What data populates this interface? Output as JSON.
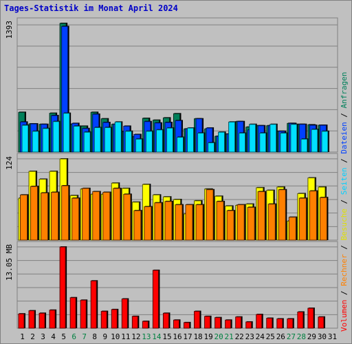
{
  "chart_data": {
    "type": "bar",
    "title": "Tages-Statistik im Monat April 2024",
    "days": [
      "1",
      "2",
      "3",
      "4",
      "5",
      "6",
      "7",
      "8",
      "9",
      "10",
      "11",
      "12",
      "13",
      "14",
      "15",
      "16",
      "17",
      "18",
      "19",
      "20",
      "21",
      "22",
      "23",
      "24",
      "25",
      "26",
      "27",
      "28",
      "29",
      "30",
      "31"
    ],
    "weekend_days": [
      "6",
      "7",
      "13",
      "14",
      "20",
      "21",
      "27",
      "28"
    ],
    "panels": [
      {
        "id": "requests",
        "scale_label": "1393",
        "ymax": 1393,
        "series": [
          {
            "name": "Anfragen",
            "color": "#00805a",
            "values": [
              430,
              305,
              300,
              420,
              1393,
              300,
              280,
              430,
              360,
              300,
              220,
              165,
              365,
              345,
              370,
              415,
              250,
              360,
              250,
              170,
              195,
              330,
              270,
              285,
              285,
              225,
              310,
              300,
              295,
              290,
              0
            ]
          },
          {
            "name": "Dateien",
            "color": "#0040ff",
            "values": [
              325,
              305,
              300,
              395,
              1360,
              310,
              255,
              410,
              320,
              300,
              280,
              190,
              330,
              315,
              320,
              340,
              250,
              360,
              260,
              170,
              195,
              330,
              240,
              285,
              285,
              225,
              310,
              300,
              290,
              290,
              0
            ]
          },
          {
            "name": "Seiten",
            "color": "#00e0ff",
            "values": [
              290,
              225,
              255,
              330,
              420,
              280,
              215,
              265,
              265,
              325,
              225,
              140,
              225,
              240,
              260,
              160,
              260,
              205,
              100,
              215,
              325,
              205,
              300,
              205,
              300,
              205,
              300,
              140,
              245,
              225,
              0
            ]
          }
        ]
      },
      {
        "id": "visits",
        "scale_label": "124",
        "ymax": 124,
        "series": [
          {
            "name": "Besuche",
            "color": "#ffff00",
            "values": [
              64,
              105,
              93,
              105,
              124,
              68,
              78,
              70,
              70,
              87,
              79,
              58,
              85,
              69,
              66,
              62,
              40,
              60,
              78,
              67,
              52,
              53,
              55,
              80,
              76,
              81,
              29,
              71,
              95,
              81,
              0
            ]
          },
          {
            "name": "Rechner",
            "color": "#ff8000",
            "values": [
              69,
              82,
              72,
              73,
              83,
              64,
              79,
              74,
              73,
              79,
              70,
              45,
              51,
              57,
              59,
              54,
              54,
              54,
              77,
              59,
              45,
              54,
              50,
              74,
              55,
              77,
              35,
              64,
              75,
              65,
              0
            ]
          }
        ]
      },
      {
        "id": "volume",
        "scale_label": "13.05 MB",
        "ymax": 13.05,
        "series": [
          {
            "name": "Volumen",
            "color": "#ff0000",
            "values": [
              2.3,
              2.8,
              2.4,
              2.9,
              13.05,
              4.9,
              4.5,
              7.6,
              2.7,
              3.0,
              4.7,
              1.9,
              1.1,
              9.3,
              2.4,
              1.3,
              0.9,
              2.7,
              1.9,
              1.7,
              1.3,
              1.8,
              1.0,
              2.2,
              1.6,
              1.5,
              1.5,
              2.6,
              3.2,
              1.8,
              0
            ]
          }
        ]
      }
    ],
    "legend": [
      {
        "label": "Volumen",
        "color": "#ff0000"
      },
      {
        "label": "Rechner",
        "color": "#ff8000"
      },
      {
        "label": "Besuche",
        "color": "#e0e000"
      },
      {
        "label": "Seiten",
        "color": "#00d0ff"
      },
      {
        "label": "Dateien",
        "color": "#0040ff"
      },
      {
        "label": "Anfragen",
        "color": "#00805a"
      }
    ],
    "separator": "/"
  }
}
